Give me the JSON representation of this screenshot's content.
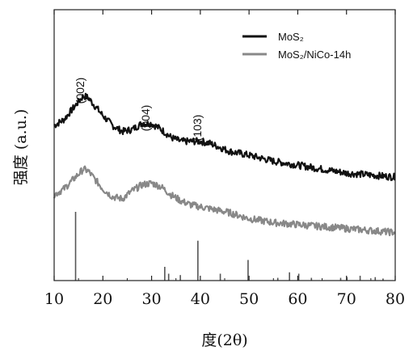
{
  "chart_data": {
    "type": "line",
    "xlabel": "度(2θ)",
    "ylabel": "强度 (a.u.)",
    "xlim": [
      10,
      80
    ],
    "x_ticks": [
      10,
      20,
      30,
      40,
      50,
      60,
      70,
      80
    ],
    "y_ticks_shown": false,
    "grid": false,
    "legend_position": "top-right",
    "series": [
      {
        "name": "MoS₂",
        "color": "#111111",
        "x": [
          10,
          12,
          14,
          16,
          17,
          18,
          20,
          22,
          24,
          26,
          28,
          30,
          32,
          34,
          36,
          38,
          40,
          42,
          44,
          46,
          50,
          55,
          60,
          65,
          70,
          75,
          80
        ],
        "y": [
          0.55,
          0.58,
          0.64,
          0.7,
          0.69,
          0.66,
          0.6,
          0.55,
          0.52,
          0.53,
          0.56,
          0.56,
          0.53,
          0.49,
          0.47,
          0.47,
          0.47,
          0.46,
          0.44,
          0.42,
          0.4,
          0.37,
          0.35,
          0.33,
          0.31,
          0.3,
          0.29
        ]
      },
      {
        "name": "MoS₂/NiCo-14h",
        "color": "#888888",
        "x": [
          10,
          12,
          14,
          16,
          17,
          18,
          20,
          22,
          24,
          26,
          28,
          30,
          32,
          34,
          36,
          38,
          40,
          42,
          44,
          46,
          50,
          55,
          60,
          65,
          70,
          75,
          80
        ],
        "y": [
          0.2,
          0.23,
          0.28,
          0.33,
          0.32,
          0.29,
          0.23,
          0.19,
          0.18,
          0.22,
          0.25,
          0.26,
          0.24,
          0.2,
          0.17,
          0.15,
          0.14,
          0.13,
          0.12,
          0.11,
          0.08,
          0.06,
          0.05,
          0.04,
          0.03,
          0.02,
          0.01
        ]
      },
      {
        "name": "",
        "type": "stick",
        "color": "#555555",
        "x": [
          14.4,
          32.7,
          33.5,
          35.9,
          39.5,
          44.1,
          49.8,
          55.9,
          58.3,
          60.2,
          62.8,
          68.8,
          70.1,
          72.8,
          75.9,
          77.5
        ],
        "y": [
          1.0,
          0.2,
          0.1,
          0.08,
          0.58,
          0.1,
          0.3,
          0.04,
          0.12,
          0.1,
          0.04,
          0.04,
          0.05,
          0.07,
          0.05,
          0.03
        ]
      }
    ],
    "annotations": [
      {
        "text": "(002)",
        "x": 16.0
      },
      {
        "text": "(004)",
        "x": 29.0
      },
      {
        "text": "(103)",
        "x": 41.0
      }
    ]
  }
}
